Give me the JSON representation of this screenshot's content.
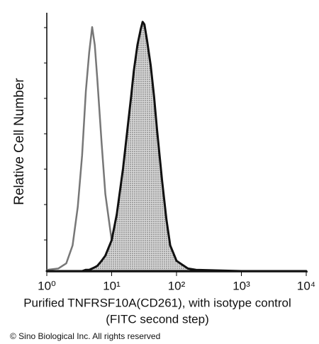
{
  "chart_data": {
    "type": "area",
    "x_label": [
      "Purified TNFRSF10A(CD261), with isotype control",
      "(FITC second step)"
    ],
    "y_label": "Relative Cell Number",
    "footer": "© Sino Biological Inc. All rights reserved",
    "x_scale": "log",
    "xlim": [
      1,
      10000
    ],
    "xticks": [
      {
        "value": 1,
        "label": "10⁰"
      },
      {
        "value": 10,
        "label": "10¹"
      },
      {
        "value": 100,
        "label": "10²"
      },
      {
        "value": 1000,
        "label": "10³"
      },
      {
        "value": 10000,
        "label": "10⁴"
      }
    ],
    "ylim": [
      0,
      100
    ],
    "x": [
      1,
      1.5,
      2,
      2.5,
      3,
      3.5,
      4,
      4.5,
      5,
      5.5,
      6,
      7,
      8,
      10,
      12,
      15,
      18,
      20,
      22,
      25,
      28,
      30,
      32,
      35,
      40,
      45,
      50,
      60,
      70,
      80,
      100,
      150,
      200,
      1000,
      10000
    ],
    "series": [
      {
        "color": "#777777",
        "filled": false,
        "values": [
          0.5,
          1,
          3,
          10,
          25,
          45,
          70,
          85,
          95,
          88,
          75,
          50,
          30,
          12,
          5,
          2,
          1,
          0.5,
          0,
          0,
          0,
          0,
          0,
          0,
          0,
          0,
          0,
          0,
          0,
          0,
          0,
          0,
          0,
          0,
          0
        ]
      },
      {
        "color": "#111111",
        "filled": true,
        "values": [
          0,
          0,
          0,
          0,
          0,
          0,
          0.5,
          0.5,
          1,
          1.5,
          2,
          4,
          6,
          12,
          22,
          40,
          58,
          68,
          78,
          88,
          94,
          97,
          96,
          90,
          80,
          68,
          55,
          35,
          20,
          10,
          4,
          1,
          0.5,
          0,
          0
        ]
      }
    ]
  }
}
